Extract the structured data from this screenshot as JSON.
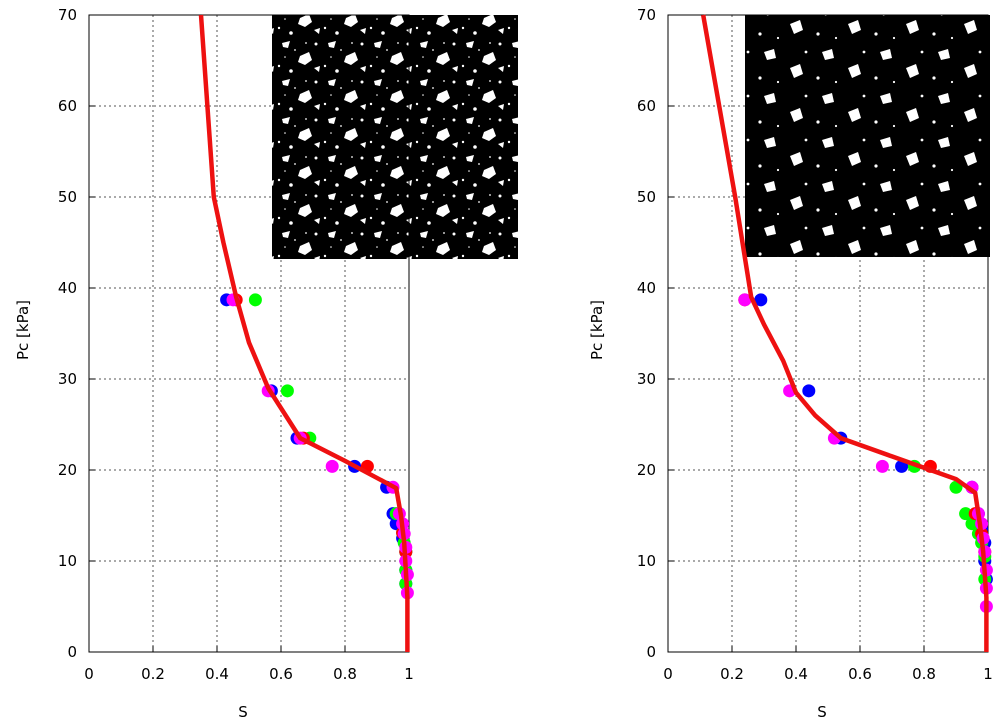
{
  "chart_data": [
    {
      "type": "scatter",
      "title": "",
      "xlabel": "S",
      "ylabel": "Pc [kPa]",
      "xlim": [
        0,
        1
      ],
      "ylim": [
        0,
        70
      ],
      "xticks": [
        "0",
        "0.2",
        "0.4",
        "0.6",
        "0.8",
        "1"
      ],
      "yticks": [
        "0",
        "10",
        "20",
        "30",
        "40",
        "50",
        "60",
        "70"
      ],
      "grid": true,
      "inset": "binary pore-structure image (white pores on black), top-right",
      "curve": {
        "color": "#ee1111",
        "x": [
          0.35,
          0.37,
          0.39,
          0.42,
          0.46,
          0.5,
          0.56,
          0.66,
          0.8,
          0.96,
          0.975,
          0.985,
          0.99,
          0.995,
          0.995
        ],
        "y": [
          70,
          60,
          50,
          45,
          39,
          34,
          29,
          23.5,
          21,
          18,
          15,
          12,
          9,
          6,
          0
        ]
      },
      "series": [
        {
          "color": "#0000ff",
          "x": [
            0.43,
            0.57,
            0.65,
            0.83,
            0.93,
            0.95,
            0.96,
            0.98,
            0.99,
            0.99,
            0.99
          ],
          "y": [
            38.7,
            28.7,
            23.5,
            20.4,
            18.1,
            15.2,
            14.1,
            12.5,
            11,
            9,
            7.5
          ]
        },
        {
          "color": "#00ff00",
          "x": [
            0.52,
            0.62,
            0.69,
            0.96,
            0.98,
            0.985,
            0.99,
            0.99,
            0.99
          ],
          "y": [
            38.7,
            28.7,
            23.5,
            15.2,
            13.1,
            12,
            11,
            9,
            7.5
          ]
        },
        {
          "color": "#ff0000",
          "x": [
            0.46,
            0.67,
            0.87,
            0.98,
            0.99
          ],
          "y": [
            38.7,
            23.5,
            20.4,
            13.1,
            11
          ]
        },
        {
          "color": "#ff00ff",
          "x": [
            0.45,
            0.56,
            0.66,
            0.76,
            0.95,
            0.97,
            0.98,
            0.985,
            0.99,
            0.99,
            0.995,
            0.995
          ],
          "y": [
            38.7,
            28.7,
            23.5,
            20.4,
            18.1,
            15.2,
            14.1,
            13,
            11.5,
            10,
            8.5,
            6.5
          ]
        }
      ]
    },
    {
      "type": "scatter",
      "title": "",
      "xlabel": "S",
      "ylabel": "Pc [kPa]",
      "xlim": [
        0,
        1
      ],
      "ylim": [
        0,
        70
      ],
      "xticks": [
        "0",
        "0.2",
        "0.4",
        "0.6",
        "0.8",
        "1"
      ],
      "yticks": [
        "0",
        "10",
        "20",
        "30",
        "40",
        "50",
        "60",
        "70"
      ],
      "grid": true,
      "inset": "binary pore-structure image (white pores on black), top-right",
      "curve": {
        "color": "#ee1111",
        "x": [
          0.11,
          0.16,
          0.21,
          0.26,
          0.3,
          0.36,
          0.4,
          0.46,
          0.54,
          0.7,
          0.9,
          0.96,
          0.975,
          0.985,
          0.995,
          0.995
        ],
        "y": [
          70,
          60,
          50,
          39,
          36,
          32,
          28.5,
          26,
          23.5,
          21.5,
          19,
          17.5,
          14,
          11,
          6,
          0
        ]
      },
      "series": [
        {
          "color": "#0000ff",
          "x": [
            0.29,
            0.44,
            0.54,
            0.73,
            0.95,
            0.97,
            0.98,
            0.99,
            0.99,
            0.995
          ],
          "y": [
            38.7,
            28.7,
            23.5,
            20.4,
            18.1,
            15.2,
            13.5,
            12,
            10,
            8
          ]
        },
        {
          "color": "#00ff00",
          "x": [
            0.77,
            0.9,
            0.93,
            0.95,
            0.97,
            0.98,
            0.99,
            0.99
          ],
          "y": [
            20.4,
            18.1,
            15.2,
            14.1,
            13,
            12,
            10.5,
            8
          ]
        },
        {
          "color": "#ff0000",
          "x": [
            0.24,
            0.82,
            0.96,
            0.98,
            0.99
          ],
          "y": [
            38.7,
            20.4,
            15.2,
            13,
            11
          ]
        },
        {
          "color": "#ff00ff",
          "x": [
            0.24,
            0.38,
            0.52,
            0.67,
            0.95,
            0.97,
            0.98,
            0.985,
            0.99,
            0.995,
            0.995,
            0.995
          ],
          "y": [
            38.7,
            28.7,
            23.5,
            20.4,
            18.1,
            15.2,
            14.1,
            12.5,
            11,
            9,
            7,
            5
          ]
        }
      ]
    }
  ]
}
